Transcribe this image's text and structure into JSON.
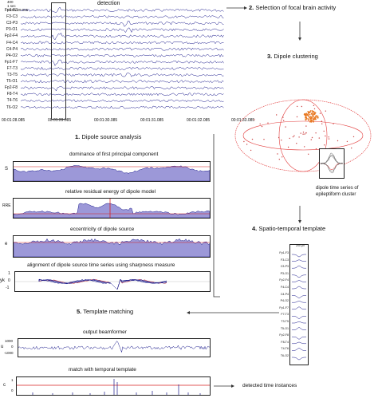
{
  "eeg": {
    "title": "detection",
    "scale_value": "400",
    "scale_unit": "1 sec",
    "time_marker": "00:01:29.085",
    "channels": [
      "Fp1-F3",
      "F3-C3",
      "C3-P3",
      "P3-O1",
      "Fp2-F4",
      "F4-C4",
      "C4-P4",
      "P4-O2",
      "Fp1-F7",
      "F7-T3",
      "T3-T5",
      "T5-O1",
      "Fp2-F8",
      "F8-T4",
      "T4-T6",
      "T6-O2"
    ],
    "time_ticks": [
      "00:01:28.085",
      "00:01:29.085",
      "00:01:30.085",
      "00:01:31.085",
      "00:01:32.085",
      "00:01:33.085"
    ]
  },
  "steps": {
    "s1": {
      "num": "1.",
      "label": "Dipole source analysis"
    },
    "s2": {
      "num": "2.",
      "label": "Selection of focal brain activity"
    },
    "s3": {
      "num": "3.",
      "label": "Dipole clustering"
    },
    "s4": {
      "num": "4.",
      "label": "Spatio-temporal template"
    },
    "s5": {
      "num": "5.",
      "label": "Template matching"
    }
  },
  "panels": {
    "dominance": {
      "title": "dominance of first principal component",
      "ylabel": "S"
    },
    "rre": {
      "title": "relative residual energy of dipole model",
      "ylabel": "RRE"
    },
    "ecc": {
      "title": "eccentricity of dipole source",
      "ylabel": "e"
    },
    "align": {
      "title": "alignment of dipole source time series using sharpness measure",
      "ylabel": "yk",
      "ticks": [
        "1",
        "0",
        "-1"
      ]
    },
    "beam": {
      "title": "output beamformer",
      "ylabel": "u",
      "ticks": [
        "1000",
        "0",
        "-1000"
      ]
    },
    "match": {
      "title": "match with temporal template",
      "ylabel": "c",
      "ticks": [
        "1",
        "0"
      ]
    }
  },
  "dipole_inset_caption": [
    "dipole time series of",
    "epileptiform cluster"
  ],
  "template": {
    "top_label": "200 µV",
    "channels": [
      "Fp1-F3",
      "F3-C3",
      "C3-P3",
      "P3-O1",
      "Fp2-F4",
      "F4-C4",
      "C4-P4",
      "P4-O2",
      "Fp1-F7",
      "F7-T3",
      "T3-T5",
      "T5-O1",
      "Fp2-F8",
      "F8-T4",
      "T4-T6",
      "T6-O2"
    ]
  },
  "detected_label": "detected time instances",
  "colors": {
    "trace": "#1a1a8c",
    "accent_red": "#d62020",
    "fill": "#9c98d8",
    "orange": "#e87820"
  }
}
